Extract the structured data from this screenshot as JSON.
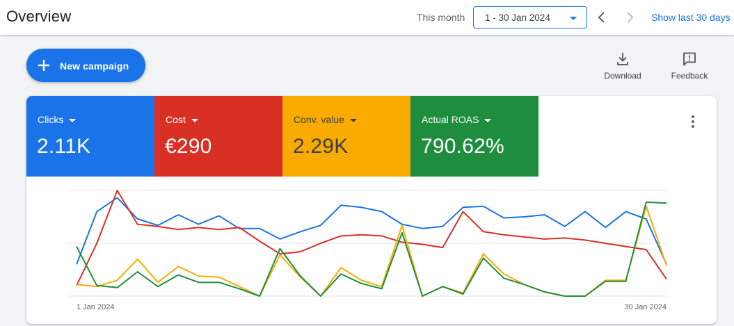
{
  "header": {
    "title": "Overview",
    "period_label": "This month",
    "date_range": "1 - 30 Jan 2024",
    "show_last": "Show last 30 days",
    "prev_icon": "chevron-left-icon",
    "next_icon": "chevron-right-icon"
  },
  "toolbar": {
    "new_campaign": "New campaign",
    "download": "Download",
    "feedback": "Feedback"
  },
  "scorecards": [
    {
      "name": "Clicks",
      "value": "2.11K",
      "bg": "#1a73e8",
      "fg": "#ffffff"
    },
    {
      "name": "Cost",
      "value": "€290",
      "bg": "#d93025",
      "fg": "#ffffff"
    },
    {
      "name": "Conv. value",
      "value": "2.29K",
      "bg": "#f9ab00",
      "fg": "#3c4043"
    },
    {
      "name": "Actual ROAS",
      "value": "790.62%",
      "bg": "#1e8e3e",
      "fg": "#ffffff"
    }
  ],
  "chart_data": {
    "type": "line",
    "x": [
      "1 Jan 2024",
      "2 Jan 2024",
      "3 Jan 2024",
      "4 Jan 2024",
      "5 Jan 2024",
      "6 Jan 2024",
      "7 Jan 2024",
      "8 Jan 2024",
      "9 Jan 2024",
      "10 Jan 2024",
      "11 Jan 2024",
      "12 Jan 2024",
      "13 Jan 2024",
      "14 Jan 2024",
      "15 Jan 2024",
      "16 Jan 2024",
      "17 Jan 2024",
      "18 Jan 2024",
      "19 Jan 2024",
      "20 Jan 2024",
      "21 Jan 2024",
      "22 Jan 2024",
      "23 Jan 2024",
      "24 Jan 2024",
      "25 Jan 2024",
      "26 Jan 2024",
      "27 Jan 2024",
      "28 Jan 2024",
      "29 Jan 2024",
      "30 Jan 2024"
    ],
    "tick_labels": [
      "1 Jan 2024",
      "30 Jan 2024"
    ],
    "ylim": [
      0,
      100
    ],
    "normalized": true,
    "grid": true,
    "series": [
      {
        "color": "#1a73e8",
        "values": [
          30,
          80,
          93,
          73,
          67,
          77,
          68,
          76,
          64,
          64,
          54,
          61,
          67,
          86,
          84,
          80,
          68,
          64,
          66,
          84,
          85,
          74,
          75,
          77,
          66,
          80,
          65,
          80,
          73,
          30
        ]
      },
      {
        "color": "#d93025",
        "values": [
          10,
          50,
          100,
          68,
          66,
          63,
          65,
          63,
          65,
          52,
          40,
          42,
          50,
          57,
          58,
          57,
          51,
          49,
          46,
          80,
          61,
          58,
          56,
          54,
          55,
          53,
          50,
          47,
          44,
          16
        ]
      },
      {
        "color": "#f9ab00",
        "values": [
          11,
          9,
          15,
          35,
          13,
          28,
          19,
          18,
          9,
          0,
          39,
          18,
          0,
          27,
          15,
          9,
          67,
          0,
          9,
          3,
          40,
          21,
          11,
          4,
          0,
          0,
          15,
          15,
          85,
          29
        ]
      },
      {
        "color": "#1e8e3e",
        "values": [
          47,
          10,
          8,
          23,
          9,
          20,
          13,
          13,
          7,
          0,
          45,
          19,
          0,
          21,
          12,
          7,
          60,
          0,
          9,
          2,
          36,
          17,
          11,
          4,
          0,
          0,
          14,
          14,
          89,
          88
        ]
      }
    ]
  }
}
